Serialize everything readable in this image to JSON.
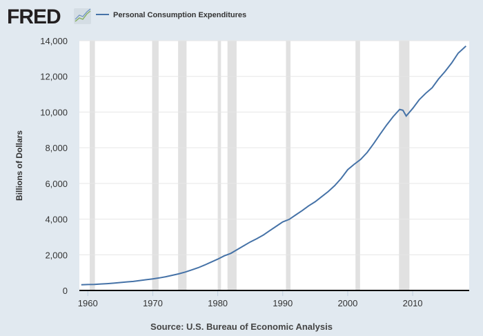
{
  "logo": {
    "text": "FRED"
  },
  "legend": {
    "label": "Personal Consumption Expenditures",
    "color": "#4572a7"
  },
  "source": "Source: U.S. Bureau of Economic Analysis",
  "chart_data": {
    "type": "line",
    "title": "",
    "xlabel": "",
    "ylabel": "Billions of Dollars",
    "xlim": [
      1958.7,
      2018.7
    ],
    "ylim": [
      0,
      14000
    ],
    "x_ticks": [
      "1960",
      "1970",
      "1980",
      "1990",
      "2000",
      "2010"
    ],
    "y_ticks": [
      "0",
      "2,000",
      "4,000",
      "6,000",
      "8,000",
      "10,000",
      "12,000",
      "14,000"
    ],
    "grid": "horizontal",
    "legend_position": "top",
    "recessions": [
      [
        1960.3,
        1961.1
      ],
      [
        1969.9,
        1970.9
      ],
      [
        1973.9,
        1975.2
      ],
      [
        1980.0,
        1980.5
      ],
      [
        1981.5,
        1982.9
      ],
      [
        1990.5,
        1991.2
      ],
      [
        2001.2,
        2001.9
      ],
      [
        2007.9,
        2009.5
      ]
    ],
    "series": [
      {
        "name": "Personal Consumption Expenditures",
        "color": "#4572a7",
        "x": [
          1959,
          1960,
          1961,
          1962,
          1963,
          1964,
          1965,
          1966,
          1967,
          1968,
          1969,
          1970,
          1971,
          1972,
          1973,
          1974,
          1975,
          1976,
          1977,
          1978,
          1979,
          1980,
          1981,
          1982,
          1983,
          1984,
          1985,
          1986,
          1987,
          1988,
          1989,
          1990,
          1991,
          1992,
          1993,
          1994,
          1995,
          1996,
          1997,
          1998,
          1999,
          2000,
          2001,
          2002,
          2003,
          2004,
          2005,
          2006,
          2007,
          2008,
          2008.5,
          2009,
          2010,
          2011,
          2012,
          2013,
          2014,
          2015,
          2016,
          2017,
          2018.2
        ],
        "y": [
          318,
          331,
          342,
          363,
          383,
          411,
          444,
          480,
          508,
          558,
          605,
          648,
          702,
          770,
          852,
          933,
          1034,
          1152,
          1278,
          1428,
          1593,
          1757,
          1941,
          2077,
          2291,
          2503,
          2720,
          2899,
          3100,
          3353,
          3598,
          3840,
          3986,
          4235,
          4477,
          4744,
          4975,
          5257,
          5547,
          5880,
          6283,
          6767,
          7073,
          7348,
          7740,
          8233,
          8769,
          9277,
          9746,
          10150,
          10100,
          9780,
          10202,
          10689,
          11051,
          11362,
          11863,
          12284,
          12749,
          13300,
          13700
        ]
      }
    ]
  }
}
